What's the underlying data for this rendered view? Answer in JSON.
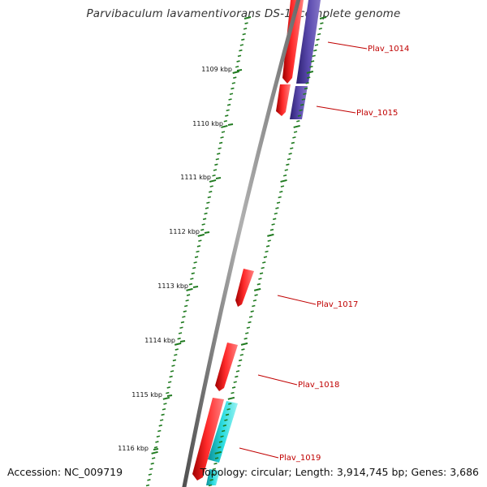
{
  "header": {
    "title": "Parvibaculum lavamentivorans DS-1, complete genome"
  },
  "footer": {
    "accession": "Accession: NC_009719",
    "summary": "Topology: circular; Length: 3,914,745 bp; Genes: 3,686"
  },
  "ticks": [
    {
      "kbp": 1109,
      "label": "1109 kbp"
    },
    {
      "kbp": 1110,
      "label": "1110 kbp"
    },
    {
      "kbp": 1111,
      "label": "1111 kbp"
    },
    {
      "kbp": 1112,
      "label": "1112 kbp"
    },
    {
      "kbp": 1113,
      "label": "1113 kbp"
    },
    {
      "kbp": 1114,
      "label": "1114 kbp"
    },
    {
      "kbp": 1115,
      "label": "1115 kbp"
    },
    {
      "kbp": 1116,
      "label": "1116 kbp"
    }
  ],
  "genes": [
    {
      "name": "Plav_1014"
    },
    {
      "name": "Plav_1015"
    },
    {
      "name": "Plav_1017"
    },
    {
      "name": "Plav_1018"
    },
    {
      "name": "Plav_1019"
    }
  ],
  "colors": {
    "forward_gene": "#ff1a1a",
    "reverse_gene": "#4a3a9a",
    "other_gene": "#22d4d8",
    "backbone": "#8a8a8a",
    "ticks": "#1f7a1f",
    "labels": "#c00000"
  }
}
